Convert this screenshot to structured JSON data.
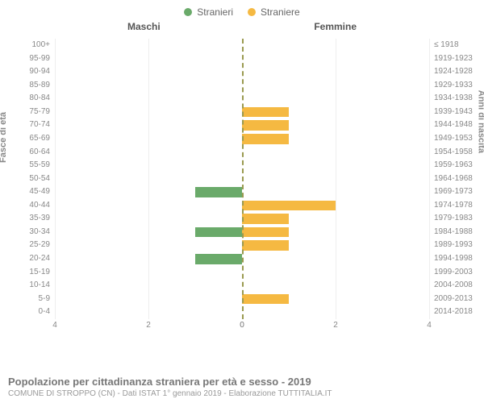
{
  "legend": {
    "male": {
      "label": "Stranieri",
      "color": "#6aaa6a"
    },
    "female": {
      "label": "Straniere",
      "color": "#f5b942"
    }
  },
  "section_titles": {
    "left": "Maschi",
    "right": "Femmine"
  },
  "axis_titles": {
    "left": "Fasce di età",
    "right": "Anni di nascita"
  },
  "chart": {
    "type": "population-pyramid",
    "x_max": 4,
    "x_ticks": [
      4,
      2,
      0,
      0,
      2,
      4
    ],
    "bar_colors": {
      "male": "#6aaa6a",
      "female": "#f5b942"
    },
    "background_color": "#ffffff",
    "grid_color": "#eeeeee",
    "centerline_color": "#9a9a50",
    "label_fontsize": 10,
    "title_fontsize": 12
  },
  "rows": [
    {
      "age": "100+",
      "birth": "≤ 1918",
      "m": 0,
      "f": 0
    },
    {
      "age": "95-99",
      "birth": "1919-1923",
      "m": 0,
      "f": 0
    },
    {
      "age": "90-94",
      "birth": "1924-1928",
      "m": 0,
      "f": 0
    },
    {
      "age": "85-89",
      "birth": "1929-1933",
      "m": 0,
      "f": 0
    },
    {
      "age": "80-84",
      "birth": "1934-1938",
      "m": 0,
      "f": 0
    },
    {
      "age": "75-79",
      "birth": "1939-1943",
      "m": 0,
      "f": 1
    },
    {
      "age": "70-74",
      "birth": "1944-1948",
      "m": 0,
      "f": 1
    },
    {
      "age": "65-69",
      "birth": "1949-1953",
      "m": 0,
      "f": 1
    },
    {
      "age": "60-64",
      "birth": "1954-1958",
      "m": 0,
      "f": 0
    },
    {
      "age": "55-59",
      "birth": "1959-1963",
      "m": 0,
      "f": 0
    },
    {
      "age": "50-54",
      "birth": "1964-1968",
      "m": 0,
      "f": 0
    },
    {
      "age": "45-49",
      "birth": "1969-1973",
      "m": 1,
      "f": 0
    },
    {
      "age": "40-44",
      "birth": "1974-1978",
      "m": 0,
      "f": 2
    },
    {
      "age": "35-39",
      "birth": "1979-1983",
      "m": 0,
      "f": 1
    },
    {
      "age": "30-34",
      "birth": "1984-1988",
      "m": 1,
      "f": 1
    },
    {
      "age": "25-29",
      "birth": "1989-1993",
      "m": 0,
      "f": 1
    },
    {
      "age": "20-24",
      "birth": "1994-1998",
      "m": 1,
      "f": 0
    },
    {
      "age": "15-19",
      "birth": "1999-2003",
      "m": 0,
      "f": 0
    },
    {
      "age": "10-14",
      "birth": "2004-2008",
      "m": 0,
      "f": 0
    },
    {
      "age": "5-9",
      "birth": "2009-2013",
      "m": 0,
      "f": 1
    },
    {
      "age": "0-4",
      "birth": "2014-2018",
      "m": 0,
      "f": 0
    }
  ],
  "footer": {
    "title": "Popolazione per cittadinanza straniera per età e sesso - 2019",
    "subtitle": "COMUNE DI STROPPO (CN) - Dati ISTAT 1° gennaio 2019 - Elaborazione TUTTITALIA.IT"
  }
}
